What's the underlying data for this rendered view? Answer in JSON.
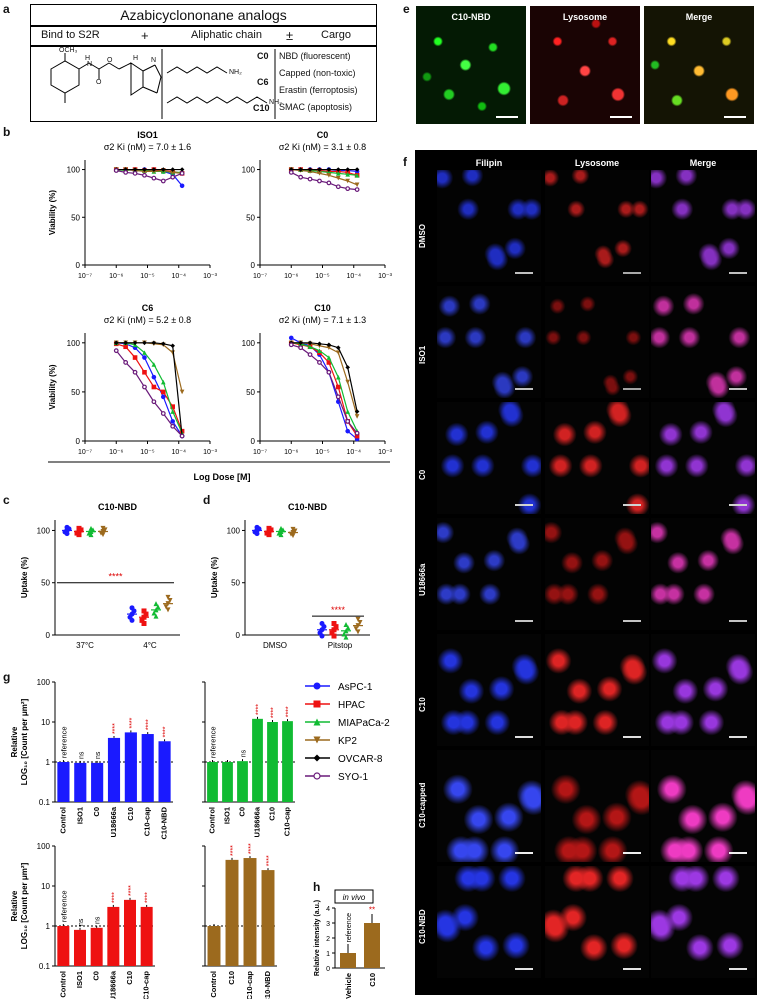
{
  "panel_letters": {
    "a": "a",
    "b": "b",
    "c": "c",
    "d": "d",
    "e": "e",
    "f": "f",
    "g": "g",
    "h": "h"
  },
  "panel_a": {
    "title": "Azabicyclononane analogs",
    "header_left": "Bind to S2R",
    "plus": "+",
    "header_mid": "Aliphatic chain",
    "plusminus": "±",
    "header_right": "Cargo",
    "chain_labels": [
      "C0",
      "C6",
      "C10"
    ],
    "cargo_items": [
      "NBD (fluorescent)",
      "Capped (non-toxic)",
      "Erastin (ferroptosis)",
      "SMAC (apoptosis)"
    ],
    "struct_labels": {
      "och3": "OCH₃",
      "n": "N",
      "h": "H",
      "o": "O",
      "o2": "O",
      "n2": "N",
      "h2": "H",
      "nh2a": "NH₂",
      "nh2b": "NH₂"
    }
  },
  "panel_b": {
    "ylabel": "Viability (%)",
    "xlabel": "Log Dose [M]",
    "xticks": [
      "10⁻⁷",
      "10⁻⁶",
      "10⁻⁵",
      "10⁻⁴",
      "10⁻³"
    ],
    "yticks": [
      "0",
      "50",
      "100"
    ],
    "plots": [
      {
        "title": "ISO1",
        "ki": "σ2 Ki (nM) = 7.0 ± 1.6"
      },
      {
        "title": "C0",
        "ki": "σ2 Ki (nM) = 3.1 ± 0.8"
      },
      {
        "title": "C6",
        "ki": "σ2 Ki (nM) = 5.2 ± 0.8"
      },
      {
        "title": "C10",
        "ki": "σ2 Ki (nM) = 7.1 ± 1.3"
      }
    ]
  },
  "panel_c": {
    "title": "C10-NBD",
    "ylabel": "Uptake (%)",
    "groups": [
      "37°C",
      "4°C"
    ],
    "yticks": [
      "0",
      "50",
      "100"
    ],
    "sig": "****"
  },
  "panel_d": {
    "title": "C10-NBD",
    "ylabel": "Uptake (%)",
    "groups": [
      "DMSO",
      "Pitstop"
    ],
    "yticks": [
      "0",
      "50",
      "100"
    ],
    "sig": "****"
  },
  "legend": [
    {
      "name": "AsPC-1",
      "color": "#1a1aff",
      "marker": "circle"
    },
    {
      "name": "HPAC",
      "color": "#ee1111",
      "marker": "square"
    },
    {
      "name": "MIAPaCa-2",
      "color": "#11bb33",
      "marker": "triangle"
    },
    {
      "name": "KP2",
      "color": "#9c6a1e",
      "marker": "triangle-down"
    },
    {
      "name": "OVCAR-8",
      "color": "#000000",
      "marker": "diamond"
    },
    {
      "name": "SYO-1",
      "color": "#6a1a7a",
      "marker": "open-circle"
    }
  ],
  "panel_e": {
    "headers": [
      "C10-NBD",
      "Lysosome",
      "Merge"
    ]
  },
  "panel_f": {
    "headers": [
      "Filipin",
      "Lysosome",
      "Merge"
    ],
    "rows": [
      "DMSO",
      "ISO1",
      "C0",
      "U18666a",
      "C10",
      "C10-capped",
      "C10-NBD"
    ]
  },
  "panel_g": {
    "ylabel1": "Relative",
    "ylabel2": "LOG₁₀ [Count per μm²]",
    "yticks": [
      "0.1",
      "1",
      "10",
      "100"
    ],
    "ref": "reference",
    "charts": [
      {
        "color": "#1a1aff",
        "categories": [
          "Control",
          "ISO1",
          "C0",
          "U18666a",
          "C10",
          "C10-cap",
          "C10-NBD"
        ],
        "values": [
          1,
          0.95,
          0.95,
          4.0,
          5.5,
          5.0,
          3.3
        ],
        "labels": [
          "reference",
          "ns",
          "ns",
          "****",
          "****",
          "****",
          "****"
        ]
      },
      {
        "color": "#11bb33",
        "categories": [
          "Control",
          "ISO1",
          "C0",
          "U18666a",
          "C10",
          "C10-cap"
        ],
        "values": [
          1,
          1,
          1.05,
          12,
          10,
          10.5
        ],
        "labels": [
          "reference",
          "",
          "ns",
          "****",
          "****",
          "****"
        ]
      },
      {
        "color": "#ee1111",
        "categories": [
          "Control",
          "ISO1",
          "C0",
          "U18666a",
          "C10",
          "C10-cap"
        ],
        "values": [
          1,
          0.8,
          0.9,
          3.0,
          4.5,
          3.0
        ],
        "labels": [
          "reference",
          "ns",
          "ns",
          "****",
          "****",
          "****"
        ]
      },
      {
        "color": "#9c6a1e",
        "categories": [
          "Control",
          "C10",
          "C10-cap",
          "C10-NBD"
        ],
        "values": [
          1,
          45,
          50,
          25
        ],
        "labels": [
          "",
          "****",
          "****",
          "****"
        ]
      }
    ]
  },
  "panel_h": {
    "tag": "in vivo",
    "ylabel": "Relative intensity (a.u.)",
    "categories": [
      "Vehicle",
      "C10"
    ],
    "values": [
      1,
      3
    ],
    "yticks": [
      "0",
      "1",
      "2",
      "3",
      "4"
    ],
    "ref": "reference",
    "sig": "**"
  },
  "chart_data": [
    {
      "type": "line",
      "title": "ISO1",
      "xlabel": "Log Dose [M]",
      "ylabel": "Viability (%)",
      "ylim": [
        0,
        110
      ],
      "x_log": true,
      "xlim": [
        1e-07,
        0.001
      ],
      "x": [
        1e-06,
        2e-06,
        4e-06,
        8e-06,
        1.6e-05,
        3.2e-05,
        6.4e-05,
        0.000128
      ],
      "series": [
        {
          "name": "AsPC-1",
          "values": [
            100,
            100,
            99,
            100,
            99,
            98,
            95,
            83
          ]
        },
        {
          "name": "HPAC",
          "values": [
            100,
            100,
            100,
            99,
            100,
            99,
            98,
            96
          ]
        },
        {
          "name": "MIAPaCa-2",
          "values": [
            100,
            99,
            100,
            99,
            98,
            98,
            97,
            97
          ]
        },
        {
          "name": "KP2",
          "values": [
            100,
            100,
            99,
            98,
            98,
            99,
            97,
            96
          ]
        },
        {
          "name": "OVCAR-8",
          "values": [
            100,
            100,
            100,
            100,
            100,
            100,
            100,
            100
          ]
        },
        {
          "name": "SYO-1",
          "values": [
            99,
            97,
            96,
            94,
            91,
            88,
            92,
            96
          ]
        }
      ]
    },
    {
      "type": "line",
      "title": "C0",
      "xlabel": "Log Dose [M]",
      "ylabel": "Viability (%)",
      "ylim": [
        0,
        110
      ],
      "x_log": true,
      "xlim": [
        1e-07,
        0.001
      ],
      "x": [
        1e-06,
        2e-06,
        4e-06,
        8e-06,
        1.6e-05,
        3.2e-05,
        6.4e-05,
        0.000128
      ],
      "series": [
        {
          "name": "AsPC-1",
          "values": [
            100,
            100,
            100,
            100,
            100,
            99,
            99,
            98
          ]
        },
        {
          "name": "HPAC",
          "values": [
            100,
            100,
            99,
            99,
            98,
            98,
            97,
            94
          ]
        },
        {
          "name": "MIAPaCa-2",
          "values": [
            100,
            100,
            99,
            98,
            97,
            96,
            95,
            94
          ]
        },
        {
          "name": "KP2",
          "values": [
            100,
            99,
            98,
            96,
            94,
            91,
            88,
            84
          ]
        },
        {
          "name": "OVCAR-8",
          "values": [
            100,
            100,
            100,
            100,
            100,
            100,
            100,
            100
          ]
        },
        {
          "name": "SYO-1",
          "values": [
            97,
            92,
            90,
            88,
            86,
            82,
            80,
            79
          ]
        }
      ]
    },
    {
      "type": "line",
      "title": "C6",
      "xlabel": "Log Dose [M]",
      "ylabel": "Viability (%)",
      "ylim": [
        0,
        110
      ],
      "x_log": true,
      "xlim": [
        1e-07,
        0.001
      ],
      "x": [
        1e-06,
        2e-06,
        4e-06,
        8e-06,
        1.6e-05,
        3.2e-05,
        6.4e-05,
        0.000128
      ],
      "series": [
        {
          "name": "AsPC-1",
          "values": [
            100,
            99,
            95,
            85,
            65,
            45,
            20,
            5
          ]
        },
        {
          "name": "HPAC",
          "values": [
            99,
            96,
            85,
            70,
            55,
            50,
            35,
            10
          ]
        },
        {
          "name": "MIAPaCa-2",
          "values": [
            100,
            100,
            98,
            90,
            78,
            60,
            30,
            8
          ]
        },
        {
          "name": "KP2",
          "values": [
            100,
            100,
            100,
            100,
            99,
            98,
            90,
            50
          ]
        },
        {
          "name": "OVCAR-8",
          "values": [
            100,
            100,
            100,
            100,
            100,
            99,
            97,
            5
          ]
        },
        {
          "name": "SYO-1",
          "values": [
            92,
            80,
            70,
            55,
            40,
            28,
            15,
            5
          ]
        }
      ]
    },
    {
      "type": "line",
      "title": "C10",
      "xlabel": "Log Dose [M]",
      "ylabel": "Viability (%)",
      "ylim": [
        0,
        110
      ],
      "x_log": true,
      "xlim": [
        1e-07,
        0.001
      ],
      "x": [
        1e-06,
        2e-06,
        4e-06,
        8e-06,
        1.6e-05,
        3.2e-05,
        6.4e-05,
        0.000128
      ],
      "series": [
        {
          "name": "AsPC-1",
          "values": [
            105,
            100,
            97,
            88,
            70,
            40,
            10,
            2
          ]
        },
        {
          "name": "HPAC",
          "values": [
            100,
            98,
            96,
            90,
            80,
            55,
            20,
            5
          ]
        },
        {
          "name": "MIAPaCa-2",
          "values": [
            100,
            99,
            96,
            92,
            85,
            65,
            30,
            10
          ]
        },
        {
          "name": "KP2",
          "values": [
            100,
            100,
            99,
            97,
            95,
            90,
            60,
            25
          ]
        },
        {
          "name": "OVCAR-8",
          "values": [
            100,
            100,
            100,
            99,
            98,
            95,
            75,
            30
          ]
        },
        {
          "name": "SYO-1",
          "values": [
            98,
            95,
            88,
            80,
            70,
            45,
            20,
            8
          ]
        }
      ]
    },
    {
      "type": "scatter",
      "title": "C10-NBD",
      "ylabel": "Uptake (%)",
      "categories": [
        "37°C",
        "4°C"
      ],
      "ylim": [
        0,
        110
      ],
      "series": [
        {
          "name": "AsPC-1",
          "values": [
            100,
            20
          ]
        },
        {
          "name": "HPAC",
          "values": [
            99,
            17
          ]
        },
        {
          "name": "MIAPaCa-2",
          "values": [
            99,
            24
          ]
        },
        {
          "name": "KP2",
          "values": [
            99,
            30
          ]
        }
      ]
    },
    {
      "type": "scatter",
      "title": "C10-NBD",
      "ylabel": "Uptake (%)",
      "categories": [
        "DMSO",
        "Pitstop"
      ],
      "ylim": [
        0,
        110
      ],
      "series": [
        {
          "name": "AsPC-1",
          "values": [
            100,
            5
          ]
        },
        {
          "name": "HPAC",
          "values": [
            99,
            5
          ]
        },
        {
          "name": "MIAPaCa-2",
          "values": [
            99,
            4
          ]
        },
        {
          "name": "KP2",
          "values": [
            98,
            9
          ]
        }
      ]
    },
    {
      "type": "bar",
      "categories": [
        "Control",
        "ISO1",
        "C0",
        "U18666a",
        "C10",
        "C10-cap",
        "C10-NBD"
      ],
      "values": [
        1,
        0.95,
        0.95,
        4.0,
        5.5,
        5.0,
        3.3
      ],
      "ylabel": "Relative LOG₁₀ [Count per μm²]",
      "ylim": [
        0.1,
        100
      ],
      "log": true
    },
    {
      "type": "bar",
      "categories": [
        "Control",
        "ISO1",
        "C0",
        "U18666a",
        "C10",
        "C10-cap"
      ],
      "values": [
        1,
        1,
        1.05,
        12,
        10,
        10.5
      ],
      "ylim": [
        0.1,
        100
      ],
      "log": true
    },
    {
      "type": "bar",
      "categories": [
        "Control",
        "ISO1",
        "C0",
        "U18666a",
        "C10",
        "C10-cap"
      ],
      "values": [
        1,
        0.8,
        0.9,
        3.0,
        4.5,
        3.0
      ],
      "ylabel": "Relative LOG₁₀ [Count per μm²]",
      "ylim": [
        0.1,
        100
      ],
      "log": true
    },
    {
      "type": "bar",
      "categories": [
        "Control",
        "C10",
        "C10-cap",
        "C10-NBD"
      ],
      "values": [
        1,
        45,
        50,
        25
      ],
      "ylim": [
        0.1,
        100
      ],
      "log": true
    },
    {
      "type": "bar",
      "categories": [
        "Vehicle",
        "C10"
      ],
      "values": [
        1,
        3
      ],
      "ylabel": "Relative intensity (a.u.)",
      "ylim": [
        0,
        4
      ]
    }
  ]
}
